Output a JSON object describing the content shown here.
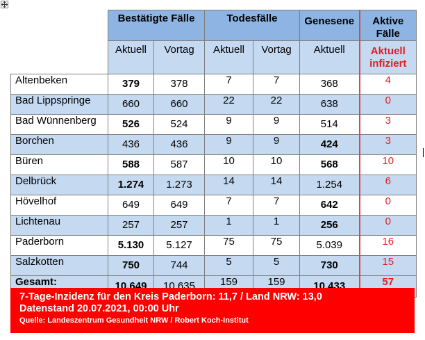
{
  "header": {
    "groups": {
      "confirmed": "Bestätigte Fälle",
      "deaths": "Todesfälle",
      "recovered": "Genesene",
      "active": "Aktive Fälle"
    },
    "sub": {
      "current": "Aktuell",
      "previous": "Vortag",
      "active_line1": "Aktuell",
      "active_line2": "infiziert"
    }
  },
  "rows": [
    {
      "name": "Altenbeken",
      "confirmed": "379",
      "confirmed_prev": "378",
      "deaths": "7",
      "deaths_prev": "7",
      "recovered": "368",
      "active": "4"
    },
    {
      "name": "Bad Lippspringe",
      "confirmed": "660",
      "confirmed_prev": "660",
      "deaths": "22",
      "deaths_prev": "22",
      "recovered": "638",
      "active": "0"
    },
    {
      "name": "Bad Wünnenberg",
      "confirmed": "526",
      "confirmed_prev": "524",
      "deaths": "9",
      "deaths_prev": "9",
      "recovered": "514",
      "active": "3"
    },
    {
      "name": "Borchen",
      "confirmed": "436",
      "confirmed_prev": "436",
      "deaths": "9",
      "deaths_prev": "9",
      "recovered": "424",
      "active": "3"
    },
    {
      "name": "Büren",
      "confirmed": "588",
      "confirmed_prev": "587",
      "deaths": "10",
      "deaths_prev": "10",
      "recovered": "568",
      "active": "10"
    },
    {
      "name": "Delbrück",
      "confirmed": "1.274",
      "confirmed_prev": "1.273",
      "deaths": "14",
      "deaths_prev": "14",
      "recovered": "1.254",
      "active": "6"
    },
    {
      "name": "Hövelhof",
      "confirmed": "649",
      "confirmed_prev": "649",
      "deaths": "7",
      "deaths_prev": "7",
      "recovered": "642",
      "active": "0"
    },
    {
      "name": "Lichtenau",
      "confirmed": "257",
      "confirmed_prev": "257",
      "deaths": "1",
      "deaths_prev": "1",
      "recovered": "256",
      "active": "0"
    },
    {
      "name": "Paderborn",
      "confirmed": "5.130",
      "confirmed_prev": "5.127",
      "deaths": "75",
      "deaths_prev": "75",
      "recovered": "5.039",
      "active": "16"
    },
    {
      "name": "Salzkotten",
      "confirmed": "750",
      "confirmed_prev": "744",
      "deaths": "5",
      "deaths_prev": "5",
      "recovered": "730",
      "active": "15"
    }
  ],
  "total": {
    "name": "Gesamt:",
    "confirmed": "10.649",
    "confirmed_prev": "10.635",
    "deaths": "159",
    "deaths_prev": "159",
    "recovered": "10.433",
    "active": "57"
  },
  "footer": {
    "line1": "7-Tage-Inzidenz für den Kreis Paderborn: 11,7 / Land NRW: 13,0",
    "line2": "Datenstand 20.07.2021, 00:00 Uhr",
    "line3": "Quelle: Landeszentrum Gesundheit NRW / Robert Koch-Institut"
  },
  "colors": {
    "header_blue": "#8db4e2",
    "row_blue": "#c5d9f1",
    "accent_red": "#ff0000",
    "text_red": "#e21f1f"
  },
  "icons": {
    "move_handle": "move-arrows-icon"
  }
}
